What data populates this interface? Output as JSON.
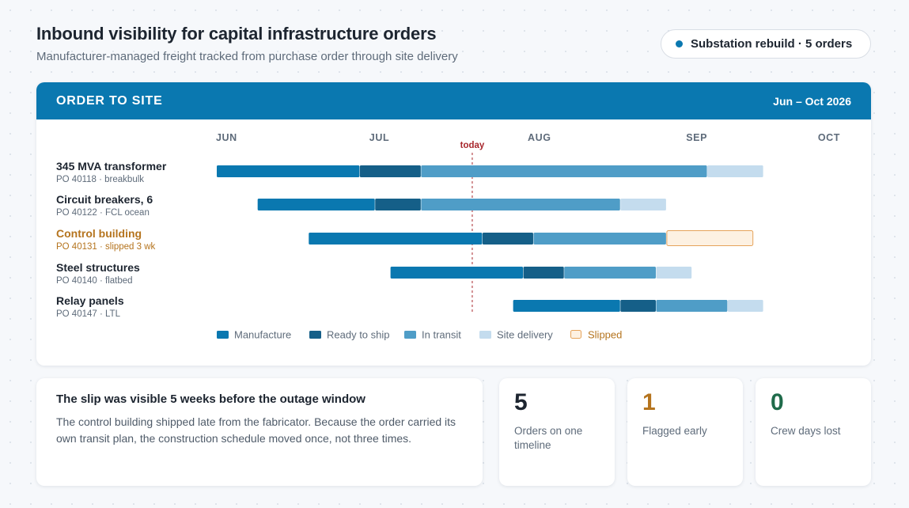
{
  "header": {
    "title": "Inbound visibility for capital infrastructure orders",
    "subtitle": "Manufacturer-managed freight tracked from purchase order through site delivery",
    "project_label": "Substation rebuild · 5 orders"
  },
  "card": {
    "title": "ORDER TO SITE",
    "range": "Jun – Oct 2026"
  },
  "colors": {
    "manufacture": "#0a78b0",
    "ready": "#155f88",
    "transit": "#4f9dc7",
    "delivery": "#c4dcee",
    "slipped_fill": "#fdf1e2",
    "slipped_border": "#e6a35a",
    "slipped_text": "#b5741e",
    "today": "#a8272d",
    "accent": "#0a78b0"
  },
  "chart_data": {
    "type": "gantt",
    "x_axis": {
      "ticks": [
        "JUN",
        "JUL",
        "AUG",
        "SEP",
        "OCT"
      ],
      "tick_dates": [
        "2026-06-01",
        "2026-07-01",
        "2026-08-01",
        "2026-09-01",
        "2026-10-01"
      ],
      "range": [
        "2026-06-01",
        "2026-10-01"
      ]
    },
    "today": {
      "label": "today",
      "date": "2026-07-21"
    },
    "legend": [
      {
        "key": "manufacture",
        "label": "Manufacture"
      },
      {
        "key": "ready",
        "label": "Ready to ship"
      },
      {
        "key": "transit",
        "label": "In transit"
      },
      {
        "key": "delivery",
        "label": "Site delivery"
      },
      {
        "key": "slipped",
        "label": "Slipped"
      }
    ],
    "rows": [
      {
        "name": "345 MVA transformer",
        "detail": "PO 40118 · breakbulk",
        "flagged": false,
        "segments": [
          {
            "phase": "manufacture",
            "start": "2026-06-01",
            "end": "2026-06-29"
          },
          {
            "phase": "ready",
            "start": "2026-06-29",
            "end": "2026-07-11"
          },
          {
            "phase": "transit",
            "start": "2026-07-11",
            "end": "2026-09-05"
          },
          {
            "phase": "delivery",
            "start": "2026-09-05",
            "end": "2026-09-16"
          }
        ]
      },
      {
        "name": "Circuit breakers, 6",
        "detail": "PO 40122 · FCL ocean",
        "flagged": false,
        "segments": [
          {
            "phase": "manufacture",
            "start": "2026-06-09",
            "end": "2026-07-02"
          },
          {
            "phase": "ready",
            "start": "2026-07-02",
            "end": "2026-07-11"
          },
          {
            "phase": "transit",
            "start": "2026-07-11",
            "end": "2026-08-19"
          },
          {
            "phase": "delivery",
            "start": "2026-08-19",
            "end": "2026-08-28"
          }
        ]
      },
      {
        "name": "Control building",
        "detail": "PO 40131 · slipped 3 wk",
        "flagged": true,
        "segments": [
          {
            "phase": "manufacture",
            "start": "2026-06-19",
            "end": "2026-07-23"
          },
          {
            "phase": "ready",
            "start": "2026-07-23",
            "end": "2026-08-02"
          },
          {
            "phase": "transit",
            "start": "2026-08-02",
            "end": "2026-08-28"
          },
          {
            "phase": "slipped",
            "start": "2026-08-28",
            "end": "2026-09-14"
          }
        ]
      },
      {
        "name": "Steel structures",
        "detail": "PO 40140 · flatbed",
        "flagged": false,
        "segments": [
          {
            "phase": "manufacture",
            "start": "2026-07-05",
            "end": "2026-07-31"
          },
          {
            "phase": "ready",
            "start": "2026-07-31",
            "end": "2026-08-08"
          },
          {
            "phase": "transit",
            "start": "2026-08-08",
            "end": "2026-08-26"
          },
          {
            "phase": "delivery",
            "start": "2026-08-26",
            "end": "2026-09-02"
          }
        ]
      },
      {
        "name": "Relay panels",
        "detail": "PO 40147 · LTL",
        "flagged": false,
        "segments": [
          {
            "phase": "manufacture",
            "start": "2026-07-29",
            "end": "2026-08-19"
          },
          {
            "phase": "ready",
            "start": "2026-08-19",
            "end": "2026-08-26"
          },
          {
            "phase": "transit",
            "start": "2026-08-26",
            "end": "2026-09-09"
          },
          {
            "phase": "delivery",
            "start": "2026-09-09",
            "end": "2026-09-16"
          }
        ]
      }
    ]
  },
  "summary": {
    "title": "The slip was visible 5 weeks before the outage window",
    "body": "The control building shipped late from the fabricator. Because the order carried its own transit plan, the construction schedule moved once, not three times."
  },
  "stats": [
    {
      "value": "5",
      "label": "Orders on one timeline",
      "color": "#1d2530"
    },
    {
      "value": "1",
      "label": "Flagged early",
      "color": "#b5741e"
    },
    {
      "value": "0",
      "label": "Crew days lost",
      "color": "#1f6b4a"
    }
  ]
}
